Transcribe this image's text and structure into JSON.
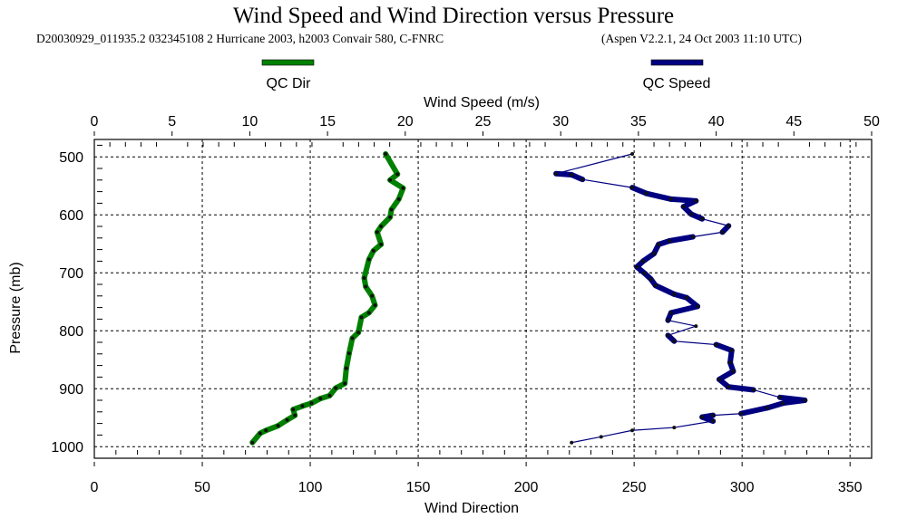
{
  "chart_data": {
    "type": "line",
    "title": "Wind Speed and Wind Direction versus Pressure",
    "subtitle_left": "D20030929_011935.2 032345108 2 Hurricane 2003, h2003 Convair 580, C-FNRC",
    "subtitle_right": "(Aspen V2.2.1, 24 Oct 2003  11:10 UTC)",
    "top_xlabel": "Wind Speed (m/s)",
    "bottom_xlabel": "Wind Direction",
    "ylabel": "Pressure (mb)",
    "top_xlim": [
      0,
      50
    ],
    "bottom_xlim": [
      0,
      360
    ],
    "ylim": [
      1020,
      470
    ],
    "top_xticks": [
      "0",
      "5",
      "10",
      "15",
      "20",
      "25",
      "30",
      "35",
      "40",
      "45",
      "50"
    ],
    "bottom_xticks": [
      "0",
      "50",
      "100",
      "150",
      "200",
      "250",
      "300",
      "350"
    ],
    "yticks": [
      "500",
      "600",
      "700",
      "800",
      "900",
      "1000"
    ],
    "grid": true,
    "legend_placement": "top",
    "series": [
      {
        "name": "QC Dir",
        "axis": "bottom",
        "color": "#008000",
        "points": [
          [
            134.9,
            495
          ],
          [
            140.4,
            530
          ],
          [
            137,
            540
          ],
          [
            143,
            554
          ],
          [
            141,
            573
          ],
          [
            137.6,
            591
          ],
          [
            137,
            604
          ],
          [
            132.8,
            620
          ],
          [
            131,
            630
          ],
          [
            132.8,
            651
          ],
          [
            129.3,
            662
          ],
          [
            127.2,
            677
          ],
          [
            125,
            709
          ],
          [
            125.7,
            724
          ],
          [
            128.6,
            740
          ],
          [
            130,
            756
          ],
          [
            127.2,
            769
          ],
          [
            123.7,
            777
          ],
          [
            122.3,
            803
          ],
          [
            119.5,
            813
          ],
          [
            118,
            839
          ],
          [
            116.7,
            865
          ],
          [
            116,
            891
          ],
          [
            111.8,
            899
          ],
          [
            109,
            912
          ],
          [
            104.7,
            917
          ],
          [
            100.6,
            925
          ],
          [
            96.4,
            930
          ],
          [
            92.1,
            936
          ],
          [
            92.9,
            946
          ],
          [
            89.3,
            954
          ],
          [
            85.1,
            964
          ],
          [
            79.5,
            972
          ],
          [
            76.8,
            977
          ],
          [
            73.2,
            993
          ]
        ]
      },
      {
        "name": "QC Speed",
        "axis": "top",
        "color": "#000080",
        "points": [
          [
            34.6,
            495
          ],
          [
            29.7,
            529
          ],
          [
            30.7,
            531
          ],
          [
            31.4,
            539
          ],
          [
            34.6,
            553
          ],
          [
            35.5,
            563
          ],
          [
            37.1,
            573
          ],
          [
            38.7,
            576
          ],
          [
            37.9,
            586
          ],
          [
            38.4,
            599
          ],
          [
            39.1,
            607
          ],
          [
            40.8,
            619
          ],
          [
            40.4,
            630
          ],
          [
            38.5,
            638
          ],
          [
            37.0,
            645
          ],
          [
            36.3,
            651
          ],
          [
            36.0,
            667
          ],
          [
            35.3,
            680
          ],
          [
            34.9,
            690
          ],
          [
            35.4,
            701
          ],
          [
            35.8,
            711
          ],
          [
            36.1,
            722
          ],
          [
            37.3,
            737
          ],
          [
            38.1,
            743
          ],
          [
            38.8,
            758
          ],
          [
            37.1,
            769
          ],
          [
            36.9,
            782
          ],
          [
            38.7,
            792
          ],
          [
            36.9,
            808
          ],
          [
            37.3,
            818
          ],
          [
            40.0,
            824
          ],
          [
            41.0,
            834
          ],
          [
            40.9,
            855
          ],
          [
            41.1,
            870
          ],
          [
            40.2,
            884
          ],
          [
            40.8,
            897
          ],
          [
            42.4,
            902
          ],
          [
            44.1,
            915
          ],
          [
            45.7,
            920
          ],
          [
            44.3,
            925
          ],
          [
            43.3,
            933
          ],
          [
            41.6,
            943
          ],
          [
            39.8,
            946
          ],
          [
            39.1,
            949
          ],
          [
            39.8,
            956
          ],
          [
            37.3,
            967
          ],
          [
            34.6,
            972
          ],
          [
            32.6,
            983
          ],
          [
            30.7,
            993
          ]
        ]
      }
    ]
  }
}
